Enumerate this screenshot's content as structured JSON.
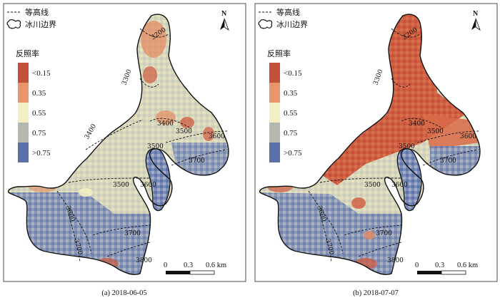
{
  "panels": [
    {
      "caption": "(a) 2018-06-05",
      "contour_labels": [
        "3200",
        "3300",
        "3400",
        "3400",
        "3500",
        "3600",
        "3500",
        "3700",
        "3500",
        "3600",
        "3600",
        "3700",
        "3700",
        "3800"
      ]
    },
    {
      "caption": "(b) 2018-07-07",
      "contour_labels": [
        "3200",
        "3300",
        "3400",
        "3500",
        "3600",
        "3500",
        "3700",
        "3500",
        "3600",
        "3600",
        "3700",
        "3700",
        "3800"
      ]
    }
  ],
  "legend": {
    "contour_label": "等高线",
    "boundary_label": "冰川边界",
    "title": "反照率",
    "classes": [
      {
        "label": "<0.15",
        "color": "#c2503a"
      },
      {
        "label": "0.35",
        "color": "#e8956b"
      },
      {
        "label": "0.55",
        "color": "#f3efc2"
      },
      {
        "label": "0.75",
        "color": "#b4b8b0"
      },
      {
        "label": ">0.75",
        "color": "#5b6fa8"
      }
    ]
  },
  "north_arrow": {
    "label": "N",
    "icon": "north-arrow-icon"
  },
  "scale_bar": {
    "ticks": [
      "0",
      "0.3",
      "0.6 km"
    ]
  }
}
